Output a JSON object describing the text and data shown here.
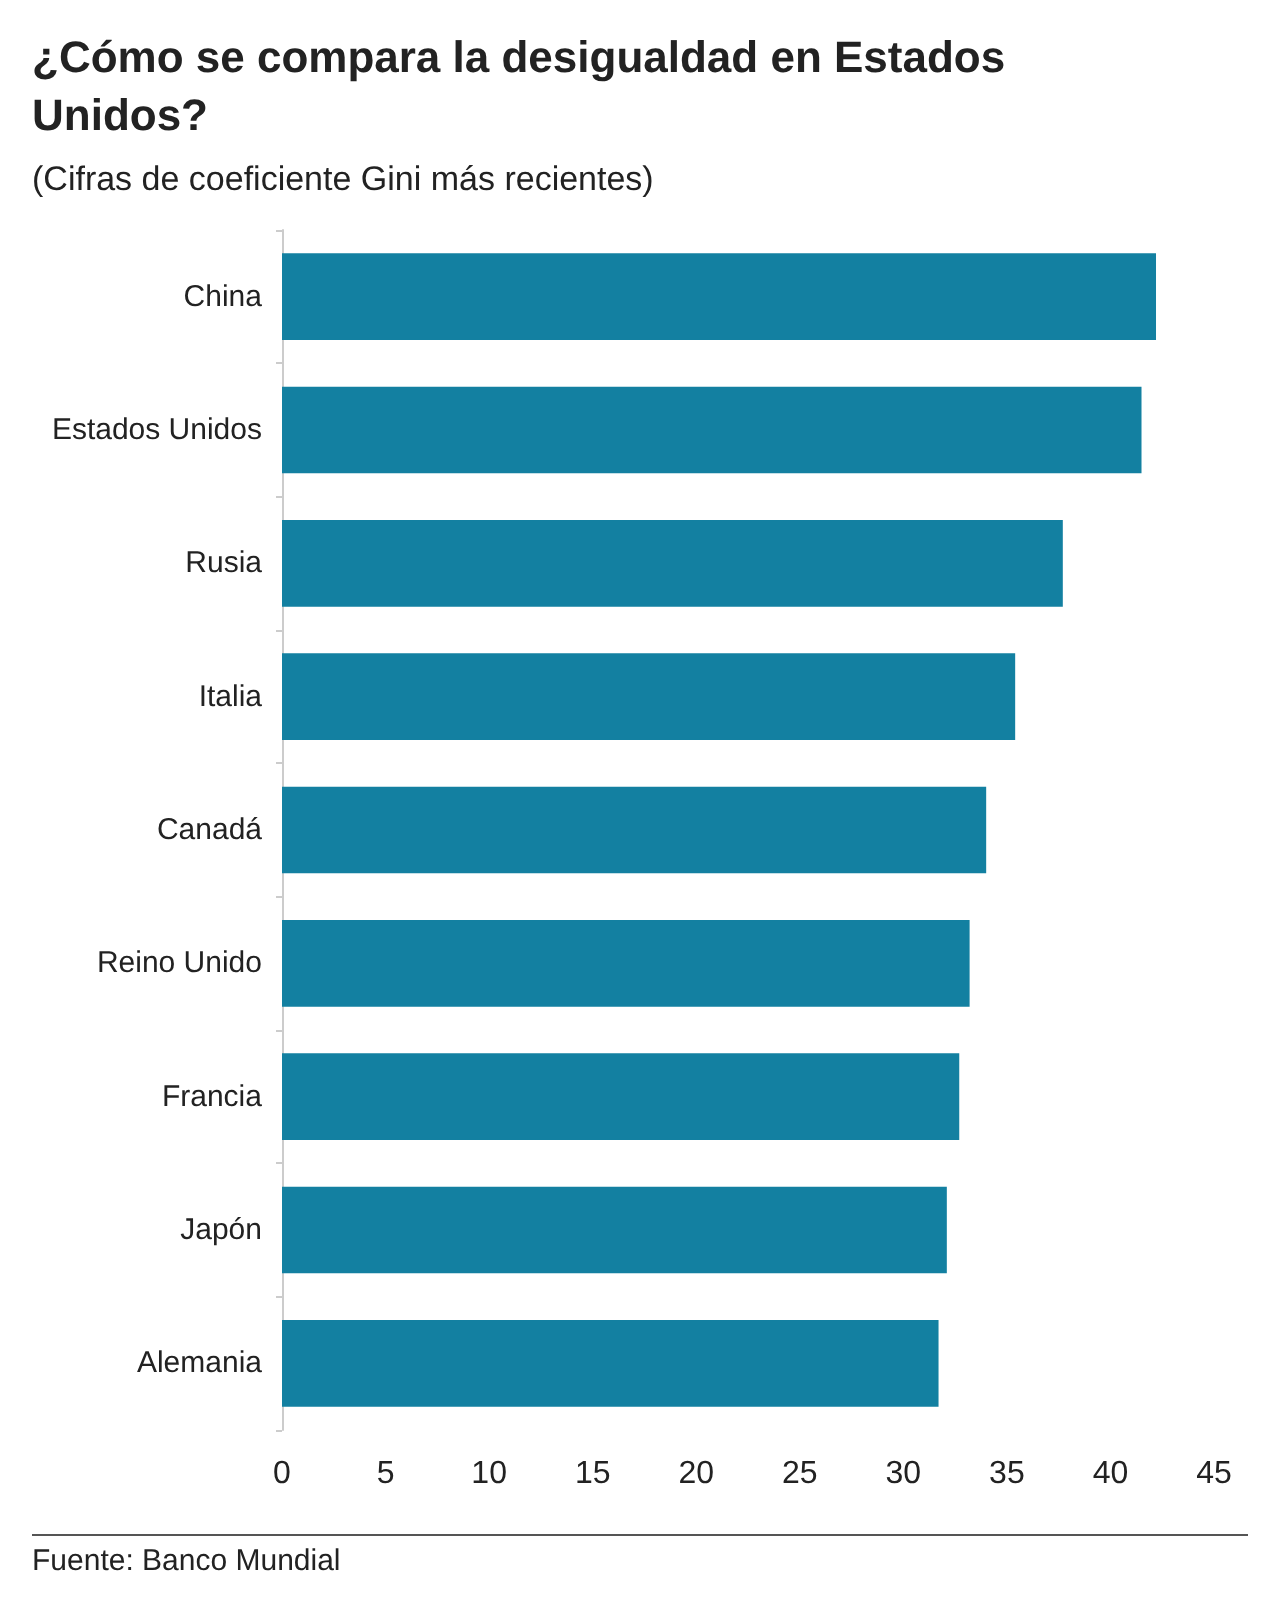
{
  "chart_data": {
    "type": "bar",
    "orientation": "horizontal",
    "title": "¿Cómo se compara la desigualdad en Estados Unidos?",
    "subtitle": "(Cifras de coeficiente Gini más recientes)",
    "categories": [
      "China",
      "Estados Unidos",
      "Rusia",
      "Italia",
      "Canadá",
      "Reino Unido",
      "Francia",
      "Japón",
      "Alemania"
    ],
    "values": [
      42.2,
      41.5,
      37.7,
      35.4,
      34.0,
      33.2,
      32.7,
      32.1,
      31.7
    ],
    "color": "#1380a1",
    "xlim": [
      0,
      45
    ],
    "xticks": [
      0,
      5,
      10,
      15,
      20,
      25,
      30,
      35,
      40,
      45
    ],
    "grid": false,
    "annotations": [
      "Fuente: Banco Mundial"
    ]
  }
}
